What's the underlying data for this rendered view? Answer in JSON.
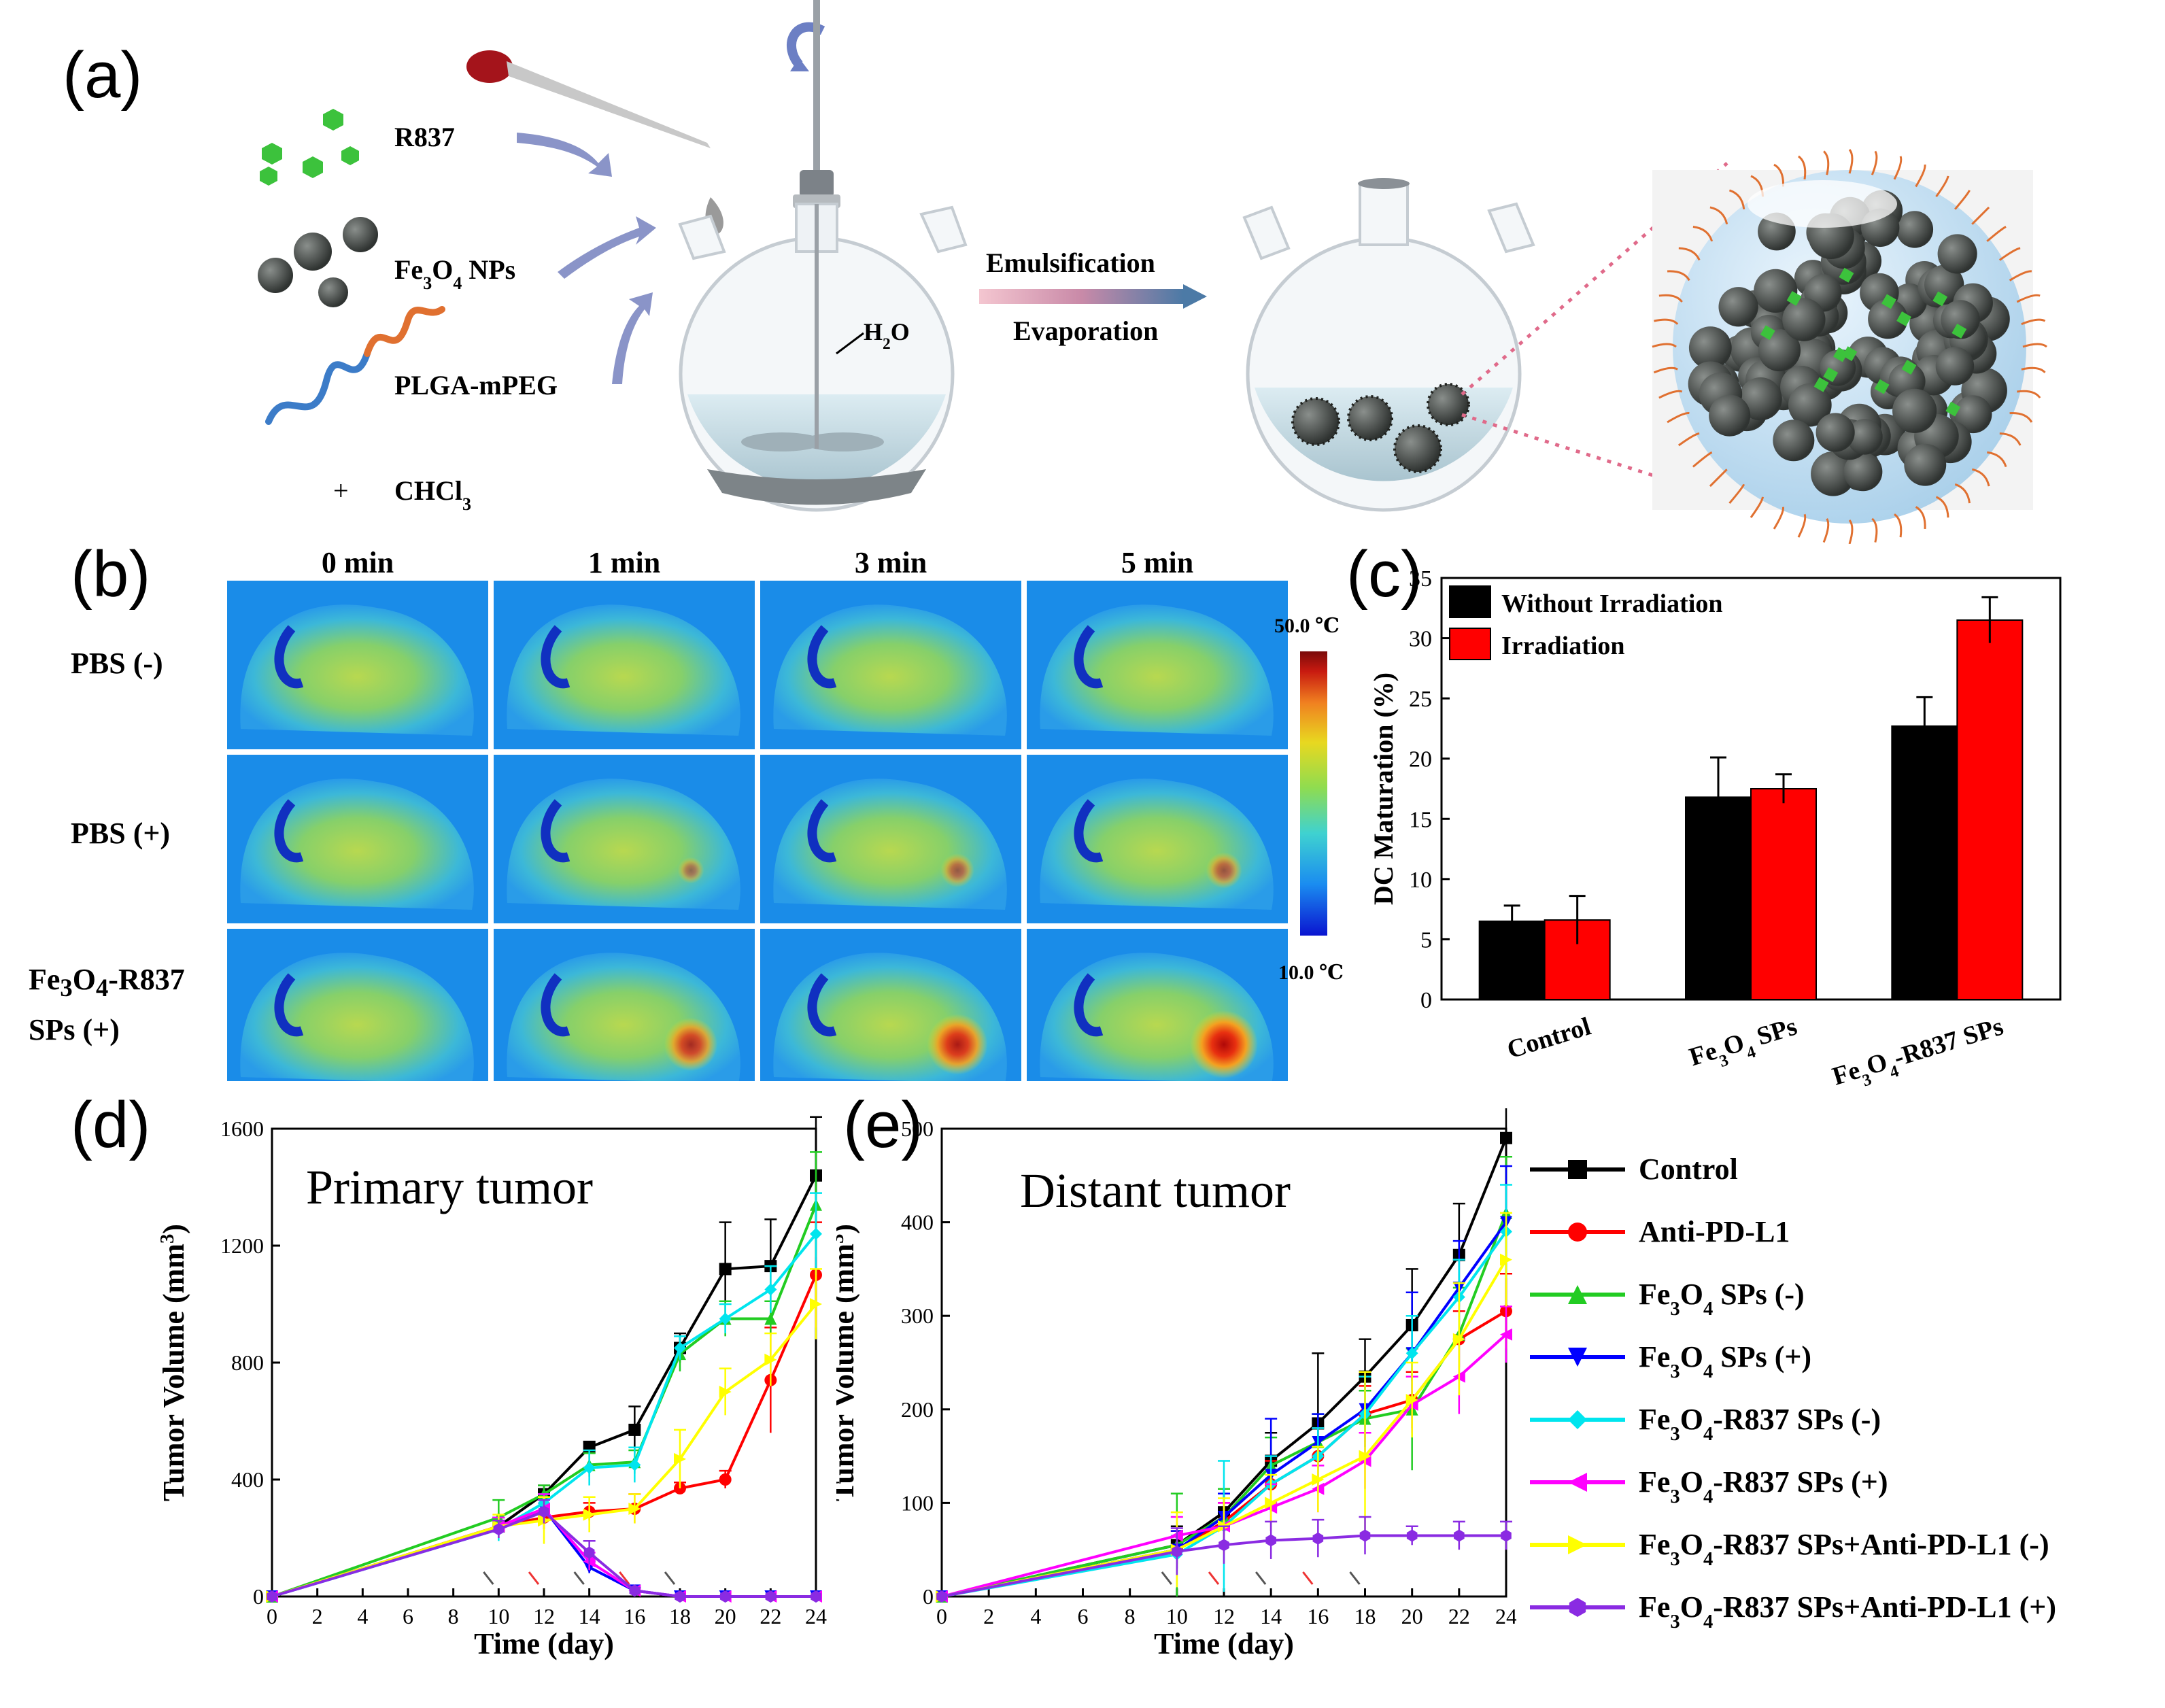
{
  "figure": {
    "panel_labels": [
      "(a)",
      "(b)",
      "(c)",
      "(d)",
      "(e)"
    ]
  },
  "panel_a": {
    "reagents": [
      "R837",
      "Fe3O4 NPs",
      "PLGA-mPEG",
      "CHCl3"
    ],
    "plus": "+",
    "water_label": "H2O",
    "process_top": "Emulsification",
    "process_bottom": "Evaporation",
    "colors": {
      "particle": "#4a4f4d",
      "r837": "#3cc23c",
      "water": "#cfe6ee",
      "peg": "#e07030",
      "shell": "#bfe0f5"
    }
  },
  "panel_b": {
    "time_headers": [
      "0 min",
      "1 min",
      "3 min",
      "5 min"
    ],
    "row_labels": [
      "PBS (-)",
      "PBS (+)",
      "Fe3O4-R837 SPs (+)"
    ],
    "scale_max": "50.0 ℃",
    "scale_min": "10.0 ℃",
    "hotspot_intensity": [
      [
        0,
        0,
        0,
        0
      ],
      [
        0,
        0.15,
        0.3,
        0.35
      ],
      [
        0,
        0.7,
        0.85,
        1.0
      ]
    ],
    "colormap": [
      "#0a14d0",
      "#1a8cf0",
      "#3fd2d0",
      "#8fdc50",
      "#e8d820",
      "#f08020",
      "#c81a10",
      "#7a0a0a"
    ]
  },
  "chart_data": [
    {
      "panel": "c",
      "type": "bar",
      "categories": [
        "Control",
        "Fe3O4 SPs",
        "Fe3O4-R837 SPs"
      ],
      "ylabel": "DC Maturation (%)",
      "ylim": [
        0,
        35
      ],
      "yticks": [
        0,
        5,
        10,
        15,
        20,
        25,
        30,
        35
      ],
      "legend_position": "top-left",
      "series": [
        {
          "name": "Without Irradiation",
          "color": "#000000",
          "values": [
            6.5,
            16.8,
            22.7
          ],
          "errors": [
            1.3,
            3.3,
            2.4
          ]
        },
        {
          "name": "Irradiation",
          "color": "#ff0000",
          "values": [
            6.6,
            17.5,
            31.5
          ],
          "errors": [
            2.0,
            1.2,
            1.9
          ]
        }
      ]
    },
    {
      "panel": "d",
      "type": "line",
      "title": "Primary tumor",
      "xlabel": "Time (day)",
      "ylabel": "Tumor Volume (mm3)",
      "xlim": [
        0,
        24
      ],
      "ylim": [
        0,
        1600
      ],
      "xticks": [
        0,
        2,
        4,
        6,
        8,
        10,
        12,
        14,
        16,
        18,
        20,
        22,
        24
      ],
      "yticks": [
        0,
        400,
        800,
        1200,
        1600
      ],
      "series": [
        {
          "name": "Control",
          "x": [
            0,
            10,
            12,
            14,
            16,
            18,
            20,
            22,
            24
          ],
          "y": [
            0,
            240,
            350,
            510,
            570,
            850,
            1120,
            1130,
            1440
          ],
          "err": [
            0,
            30,
            30,
            20,
            80,
            50,
            160,
            160,
            200
          ]
        },
        {
          "name": "Anti-PD-L1",
          "x": [
            0,
            10,
            12,
            14,
            16,
            18,
            20,
            22,
            24
          ],
          "y": [
            0,
            240,
            270,
            290,
            300,
            370,
            400,
            740,
            1100
          ],
          "err": [
            0,
            30,
            40,
            30,
            50,
            20,
            30,
            180,
            180
          ]
        },
        {
          "name": "Fe3O4 SPs (-)",
          "x": [
            0,
            10,
            12,
            14,
            16,
            18,
            20,
            22,
            24
          ],
          "y": [
            0,
            270,
            350,
            450,
            460,
            830,
            950,
            950,
            1340
          ],
          "err": [
            0,
            60,
            30,
            40,
            40,
            60,
            60,
            60,
            180
          ]
        },
        {
          "name": "Fe3O4 SPs (+)",
          "x": [
            0,
            10,
            12,
            14,
            16,
            18,
            20,
            22,
            24
          ],
          "y": [
            0,
            230,
            300,
            100,
            20,
            0,
            0,
            0,
            0
          ],
          "err": [
            0,
            30,
            40,
            20,
            10,
            0,
            0,
            0,
            0
          ]
        },
        {
          "name": "Fe3O4-R837 SPs (-)",
          "x": [
            0,
            10,
            12,
            14,
            16,
            18,
            20,
            22,
            24
          ],
          "y": [
            0,
            230,
            320,
            440,
            450,
            850,
            950,
            1050,
            1240
          ],
          "err": [
            0,
            40,
            30,
            60,
            60,
            40,
            50,
            80,
            140
          ]
        },
        {
          "name": "Fe3O4-R837 SPs (+)",
          "x": [
            0,
            10,
            12,
            14,
            16,
            18,
            20,
            22,
            24
          ],
          "y": [
            0,
            240,
            300,
            120,
            20,
            0,
            0,
            0,
            0
          ],
          "err": [
            0,
            30,
            50,
            30,
            10,
            0,
            0,
            0,
            0
          ]
        },
        {
          "name": "Fe3O4-R837 SPs+Anti-PD-L1 (-)",
          "x": [
            0,
            10,
            12,
            14,
            16,
            18,
            20,
            22,
            24
          ],
          "y": [
            0,
            240,
            260,
            280,
            300,
            470,
            700,
            810,
            1000
          ],
          "err": [
            0,
            40,
            80,
            60,
            50,
            100,
            80,
            90,
            120
          ]
        },
        {
          "name": "Fe3O4-R837 SPs+Anti-PD-L1 (+)",
          "x": [
            0,
            10,
            12,
            14,
            16,
            18,
            20,
            22,
            24
          ],
          "y": [
            0,
            230,
            290,
            150,
            20,
            0,
            0,
            0,
            0
          ],
          "err": [
            0,
            30,
            40,
            40,
            10,
            0,
            0,
            0,
            0
          ]
        }
      ]
    },
    {
      "panel": "e",
      "type": "line",
      "title": "Distant tumor",
      "xlabel": "Time (day)",
      "ylabel": "Tumor Volume (mm3)",
      "xlim": [
        0,
        24
      ],
      "ylim": [
        0,
        500
      ],
      "xticks": [
        0,
        2,
        4,
        6,
        8,
        10,
        12,
        14,
        16,
        18,
        20,
        22,
        24
      ],
      "yticks": [
        0,
        100,
        200,
        300,
        400,
        500
      ],
      "series": [
        {
          "name": "Control",
          "x": [
            0,
            10,
            12,
            14,
            16,
            18,
            20,
            22,
            24
          ],
          "y": [
            0,
            55,
            90,
            145,
            185,
            235,
            290,
            365,
            490
          ],
          "err": [
            0,
            20,
            25,
            30,
            75,
            40,
            60,
            55,
            170
          ]
        },
        {
          "name": "Anti-PD-L1",
          "x": [
            0,
            10,
            12,
            14,
            16,
            18,
            20,
            22,
            24
          ],
          "y": [
            0,
            50,
            80,
            120,
            150,
            195,
            210,
            275,
            305
          ],
          "err": [
            0,
            20,
            20,
            25,
            30,
            30,
            30,
            30,
            40
          ]
        },
        {
          "name": "Fe3O4 SPs (-)",
          "x": [
            0,
            10,
            12,
            14,
            16,
            18,
            20,
            22,
            24
          ],
          "y": [
            0,
            55,
            85,
            140,
            165,
            190,
            200,
            280,
            410
          ],
          "err": [
            0,
            55,
            30,
            30,
            30,
            30,
            65,
            50,
            60
          ]
        },
        {
          "name": "Fe3O4 SPs (+)",
          "x": [
            0,
            10,
            12,
            14,
            16,
            18,
            20,
            22,
            24
          ],
          "y": [
            0,
            50,
            85,
            130,
            165,
            200,
            260,
            330,
            400
          ],
          "err": [
            0,
            20,
            25,
            60,
            30,
            40,
            65,
            50,
            60
          ]
        },
        {
          "name": "Fe3O4-R837 SPs (-)",
          "x": [
            0,
            10,
            12,
            14,
            16,
            18,
            20,
            22,
            24
          ],
          "y": [
            0,
            45,
            75,
            120,
            150,
            195,
            260,
            320,
            390
          ],
          "err": [
            0,
            20,
            70,
            30,
            30,
            40,
            40,
            40,
            50
          ]
        },
        {
          "name": "Fe3O4-R837 SPs (+)",
          "x": [
            0,
            10,
            12,
            14,
            16,
            18,
            20,
            22,
            24
          ],
          "y": [
            0,
            65,
            75,
            95,
            115,
            145,
            205,
            235,
            280
          ],
          "err": [
            0,
            20,
            25,
            25,
            25,
            30,
            30,
            40,
            30
          ]
        },
        {
          "name": "Fe3O4-R837 SPs+Anti-PD-L1 (-)",
          "x": [
            0,
            10,
            12,
            14,
            16,
            18,
            20,
            22,
            24
          ],
          "y": [
            0,
            50,
            75,
            100,
            125,
            150,
            210,
            275,
            360
          ],
          "err": [
            0,
            40,
            30,
            30,
            35,
            90,
            40,
            60,
            50
          ]
        },
        {
          "name": "Fe3O4-R837 SPs+Anti-PD-L1 (+)",
          "x": [
            0,
            10,
            12,
            14,
            16,
            18,
            20,
            22,
            24
          ],
          "y": [
            0,
            48,
            55,
            60,
            62,
            65,
            65,
            65,
            65
          ],
          "err": [
            0,
            25,
            20,
            20,
            20,
            20,
            10,
            15,
            15
          ]
        }
      ]
    }
  ],
  "legend_de": {
    "entries": [
      "Control",
      "Anti-PD-L1",
      "Fe3O4 SPs (-)",
      "Fe3O4 SPs (+)",
      "Fe3O4-R837 SPs (-)",
      "Fe3O4-R837 SPs (+)",
      "Fe3O4-R837 SPs+Anti-PD-L1 (-)",
      "Fe3O4-R837 SPs+Anti-PD-L1 (+)"
    ],
    "colors": [
      "#000000",
      "#ff0000",
      "#22cc22",
      "#0000ff",
      "#00e5ee",
      "#ff00ff",
      "#ffff00",
      "#8a2be2"
    ],
    "markers": [
      "square",
      "circle",
      "triangle-up",
      "triangle-down",
      "diamond",
      "triangle-left",
      "triangle-right",
      "hexagon"
    ]
  }
}
